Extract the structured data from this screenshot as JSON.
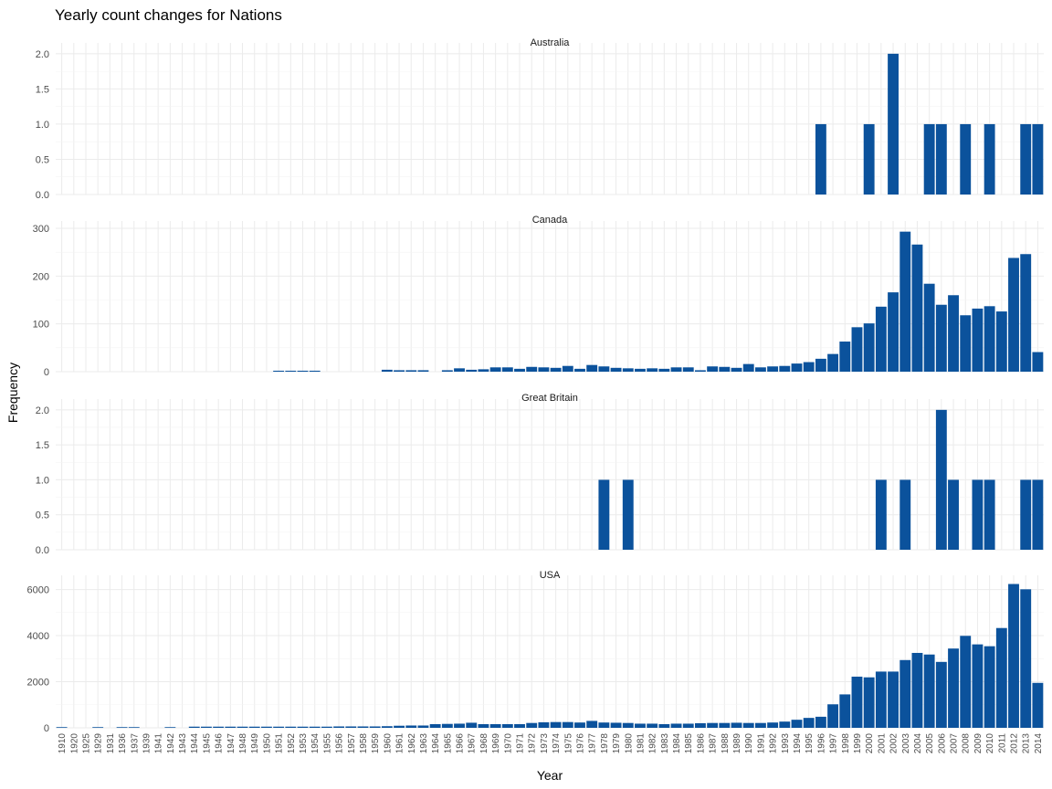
{
  "chart_data": {
    "type": "bar",
    "title": "Yearly count changes for Nations",
    "xlabel": "Year",
    "ylabel": "Frequency",
    "bar_color": "#0B529C",
    "grid_color": "#EBEBEB",
    "categories": [
      "1910",
      "1920",
      "1925",
      "1929",
      "1931",
      "1936",
      "1937",
      "1939",
      "1941",
      "1942",
      "1943",
      "1944",
      "1945",
      "1946",
      "1947",
      "1948",
      "1949",
      "1950",
      "1951",
      "1952",
      "1953",
      "1954",
      "1955",
      "1956",
      "1957",
      "1958",
      "1959",
      "1960",
      "1961",
      "1962",
      "1963",
      "1964",
      "1965",
      "1966",
      "1967",
      "1968",
      "1969",
      "1970",
      "1971",
      "1972",
      "1973",
      "1974",
      "1975",
      "1976",
      "1977",
      "1978",
      "1979",
      "1980",
      "1981",
      "1982",
      "1983",
      "1984",
      "1985",
      "1986",
      "1987",
      "1988",
      "1989",
      "1990",
      "1991",
      "1992",
      "1993",
      "1994",
      "1995",
      "1996",
      "1997",
      "1998",
      "1999",
      "2000",
      "2001",
      "2002",
      "2003",
      "2004",
      "2005",
      "2006",
      "2007",
      "2008",
      "2009",
      "2010",
      "2011",
      "2012",
      "2013",
      "2014"
    ],
    "facets": [
      {
        "name": "Australia",
        "ylim": [
          0,
          2.05
        ],
        "yticks": [
          0,
          0.5,
          1,
          1.5,
          2
        ],
        "ytick_labels": [
          "0.0",
          "0.5",
          "1.0",
          "1.5",
          "2.0"
        ],
        "values": {
          "1996": 1,
          "2000": 1,
          "2002": 2,
          "2005": 1,
          "2006": 1,
          "2008": 1,
          "2010": 1,
          "2013": 1,
          "2014": 1
        }
      },
      {
        "name": "Canada",
        "ylim": [
          0,
          300
        ],
        "yticks": [
          0,
          100,
          200,
          300
        ],
        "ytick_labels": [
          "0",
          "100",
          "200",
          "300"
        ],
        "values": {
          "1951": 2,
          "1952": 2,
          "1953": 2,
          "1954": 2,
          "1960": 4,
          "1961": 3,
          "1962": 3,
          "1963": 3,
          "1965": 3,
          "1966": 7,
          "1967": 4,
          "1968": 5,
          "1969": 9,
          "1970": 9,
          "1971": 6,
          "1972": 10,
          "1973": 9,
          "1974": 8,
          "1975": 12,
          "1976": 6,
          "1977": 14,
          "1978": 11,
          "1979": 8,
          "1980": 7,
          "1981": 6,
          "1982": 7,
          "1983": 6,
          "1984": 9,
          "1985": 9,
          "1986": 3,
          "1987": 11,
          "1988": 10,
          "1989": 8,
          "1990": 16,
          "1991": 9,
          "1992": 11,
          "1993": 12,
          "1994": 17,
          "1995": 20,
          "1996": 27,
          "1997": 37,
          "1998": 63,
          "1999": 93,
          "2000": 101,
          "2001": 136,
          "2002": 166,
          "2003": 293,
          "2004": 266,
          "2005": 184,
          "2006": 140,
          "2007": 160,
          "2008": 118,
          "2009": 132,
          "2010": 137,
          "2011": 126,
          "2012": 238,
          "2013": 246,
          "2014": 41
        }
      },
      {
        "name": "Great Britain",
        "ylim": [
          0,
          2.05
        ],
        "yticks": [
          0,
          0.5,
          1,
          1.5,
          2
        ],
        "ytick_labels": [
          "0.0",
          "0.5",
          "1.0",
          "1.5",
          "2.0"
        ],
        "values": {
          "1978": 1,
          "1980": 1,
          "2001": 1,
          "2003": 1,
          "2006": 2,
          "2007": 1,
          "2009": 1,
          "2010": 1,
          "2013": 1,
          "2014": 1
        }
      },
      {
        "name": "USA",
        "ylim": [
          0,
          6300
        ],
        "yticks": [
          0,
          2000,
          4000,
          6000
        ],
        "ytick_labels": [
          "0",
          "2000",
          "4000",
          "6000"
        ],
        "values": {
          "1910": 30,
          "1929": 30,
          "1936": 30,
          "1937": 30,
          "1942": 30,
          "1944": 50,
          "1945": 50,
          "1946": 50,
          "1947": 50,
          "1948": 50,
          "1949": 50,
          "1950": 50,
          "1951": 50,
          "1952": 50,
          "1953": 50,
          "1954": 50,
          "1955": 50,
          "1956": 60,
          "1957": 60,
          "1958": 60,
          "1959": 60,
          "1960": 70,
          "1961": 90,
          "1962": 100,
          "1963": 100,
          "1964": 160,
          "1965": 170,
          "1966": 180,
          "1967": 220,
          "1968": 160,
          "1969": 160,
          "1970": 160,
          "1971": 160,
          "1972": 210,
          "1973": 240,
          "1974": 250,
          "1975": 250,
          "1976": 230,
          "1977": 300,
          "1978": 230,
          "1979": 220,
          "1980": 210,
          "1981": 180,
          "1982": 180,
          "1983": 160,
          "1984": 180,
          "1985": 180,
          "1986": 200,
          "1987": 210,
          "1988": 210,
          "1989": 220,
          "1990": 210,
          "1991": 210,
          "1992": 230,
          "1993": 270,
          "1994": 350,
          "1995": 430,
          "1996": 480,
          "1997": 1020,
          "1998": 1450,
          "1999": 2220,
          "2000": 2190,
          "2001": 2440,
          "2002": 2440,
          "2003": 2940,
          "2004": 3250,
          "2005": 3180,
          "2006": 2860,
          "2007": 3440,
          "2008": 3990,
          "2009": 3620,
          "2010": 3540,
          "2011": 4330,
          "2012": 6240,
          "2013": 6010,
          "2014": 1950
        }
      }
    ]
  }
}
